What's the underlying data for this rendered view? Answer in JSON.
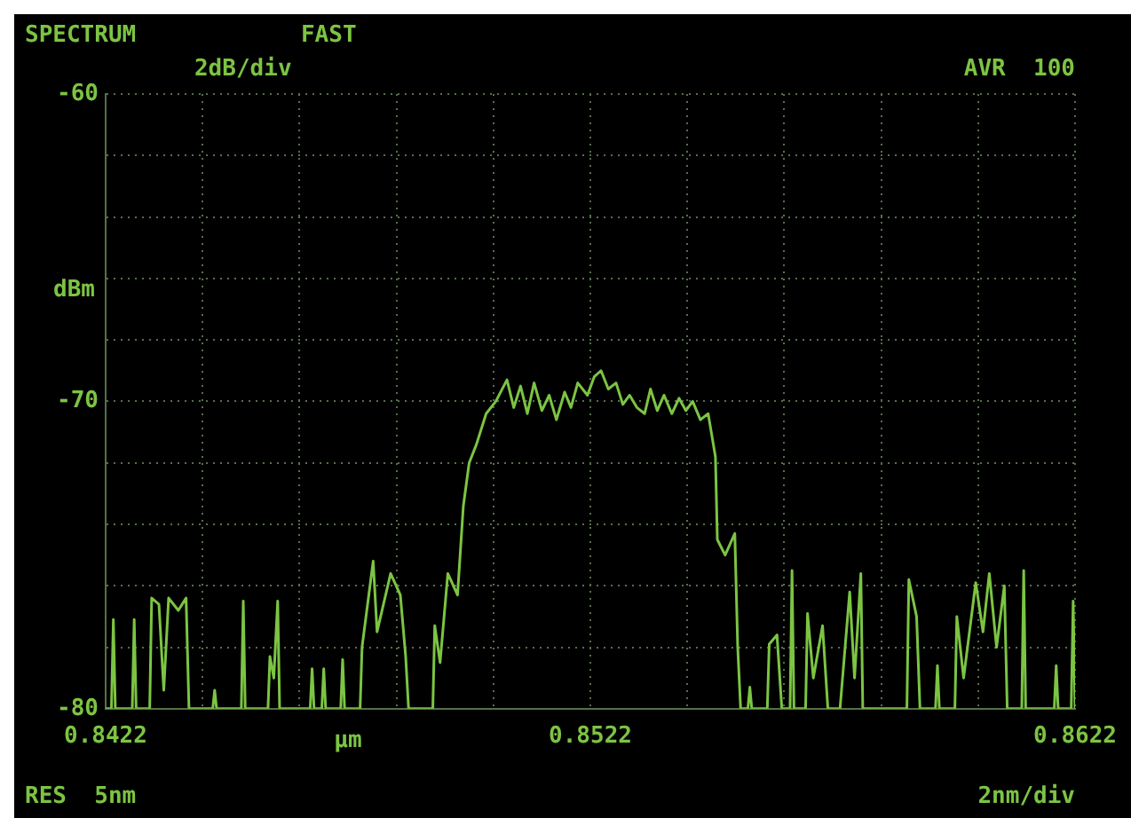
{
  "chart_data": {
    "type": "line",
    "title": "SPECTRUM",
    "xlabel": "µm",
    "ylabel": "dBm",
    "annotations": [
      "FAST",
      "2dB/div",
      "AVR  100",
      "RES  5nm",
      "2nm/div"
    ],
    "xlim": [
      0.8422,
      0.8622
    ],
    "xticks": [
      0.8422,
      {
        "value": 0.8442,
        "label": null
      },
      {
        "value": 0.8462,
        "label": null
      },
      {
        "value": 0.8482,
        "label": null
      },
      {
        "value": 0.8502,
        "label": null
      },
      0.8522,
      {
        "value": 0.8542,
        "label": null
      },
      {
        "value": 0.8562,
        "label": null
      },
      {
        "value": 0.8582,
        "label": null
      },
      {
        "value": 0.8602,
        "label": null
      },
      0.8622
    ],
    "ylim": [
      -80,
      -60
    ],
    "yticks": [
      -80,
      {
        "value": -78,
        "label": null
      },
      {
        "value": -76,
        "label": null
      },
      {
        "value": -74,
        "label": null
      },
      {
        "value": -72,
        "label": null
      },
      -70,
      {
        "value": -68,
        "label": null
      },
      {
        "value": -66,
        "label": null
      },
      {
        "value": -64,
        "label": null
      },
      {
        "value": -62,
        "label": null
      },
      -60
    ],
    "grid": true,
    "line_style": "solid",
    "marker": "none",
    "series": [
      {
        "color": "#7cc443",
        "x": [
          0.8422,
          0.84232,
          0.84236,
          0.8424,
          0.84275,
          0.84279,
          0.84283,
          0.84311,
          0.84315,
          0.8433,
          0.8434,
          0.8435,
          0.8437,
          0.84386,
          0.84392,
          0.84441,
          0.84445,
          0.84449,
          0.845,
          0.84504,
          0.84508,
          0.84555,
          0.84559,
          0.84567,
          0.84575,
          0.84579,
          0.84642,
          0.84646,
          0.8465,
          0.84666,
          0.8467,
          0.84674,
          0.84705,
          0.84709,
          0.84713,
          0.84745,
          0.84749,
          0.84772,
          0.8478,
          0.84808,
          0.84828,
          0.84839,
          0.84845,
          0.84895,
          0.84899,
          0.8491,
          0.84926,
          0.84946,
          0.84958,
          0.8497,
          0.84985,
          0.85005,
          0.85025,
          0.85048,
          0.85062,
          0.85076,
          0.8509,
          0.85104,
          0.8512,
          0.85135,
          0.8515,
          0.85167,
          0.8518,
          0.85194,
          0.85214,
          0.85228,
          0.85242,
          0.85257,
          0.85273,
          0.85287,
          0.85301,
          0.85316,
          0.85332,
          0.85344,
          0.85358,
          0.85372,
          0.85388,
          0.85403,
          0.85417,
          0.85431,
          0.85447,
          0.85463,
          0.85478,
          0.85482,
          0.85498,
          0.85518,
          0.85524,
          0.8553,
          0.85545,
          0.85549,
          0.85553,
          0.85585,
          0.85589,
          0.85605,
          0.85615,
          0.85632,
          0.85636,
          0.8564,
          0.85664,
          0.85668,
          0.8568,
          0.85699,
          0.8571,
          0.85735,
          0.85755,
          0.85765,
          0.85778,
          0.85782,
          0.85873,
          0.85877,
          0.85893,
          0.859,
          0.85932,
          0.85936,
          0.8594,
          0.85972,
          0.85976,
          0.8599,
          0.86015,
          0.8603,
          0.86043,
          0.86058,
          0.86074,
          0.8608,
          0.8611,
          0.86114,
          0.86118,
          0.86177,
          0.86181,
          0.86185,
          0.86212,
          0.86216,
          0.8622
        ],
        "values": [
          -80,
          -80,
          -77.1,
          -80,
          -80,
          -77.1,
          -80,
          -80,
          -76.4,
          -76.6,
          -79.4,
          -76.4,
          -76.8,
          -76.4,
          -80,
          -80,
          -79.4,
          -80,
          -80,
          -76.5,
          -80,
          -80,
          -78.3,
          -79,
          -76.5,
          -80,
          -80,
          -78.7,
          -80,
          -80,
          -78.7,
          -80,
          -80,
          -78.4,
          -80,
          -80,
          -78,
          -75.2,
          -77.5,
          -75.6,
          -76.3,
          -78.3,
          -80,
          -80,
          -77.3,
          -78.5,
          -75.6,
          -76.3,
          -73.4,
          -72,
          -71.4,
          -70.4,
          -70,
          -69.3,
          -70.2,
          -69.5,
          -70.4,
          -69.4,
          -70.3,
          -69.8,
          -70.6,
          -69.7,
          -70.2,
          -69.4,
          -69.8,
          -69.2,
          -69,
          -69.6,
          -69.4,
          -70.1,
          -69.8,
          -70.2,
          -70.4,
          -69.6,
          -70.3,
          -69.8,
          -70.4,
          -69.9,
          -70.3,
          -70,
          -70.6,
          -70.4,
          -71.8,
          -74.5,
          -75,
          -74.3,
          -78,
          -80,
          -80,
          -79.3,
          -80,
          -80,
          -77.9,
          -77.6,
          -80,
          -80,
          -75.5,
          -80,
          -80,
          -76.9,
          -79,
          -77.3,
          -80,
          -80,
          -76.2,
          -79,
          -75.6,
          -80,
          -80,
          -75.8,
          -77,
          -80,
          -80,
          -78.6,
          -80,
          -80,
          -77,
          -79,
          -75.9,
          -77.5,
          -75.6,
          -78,
          -76,
          -80,
          -80,
          -75.5,
          -80,
          -80,
          -78.6,
          -80,
          -80,
          -76.5,
          -80
        ]
      }
    ]
  }
}
